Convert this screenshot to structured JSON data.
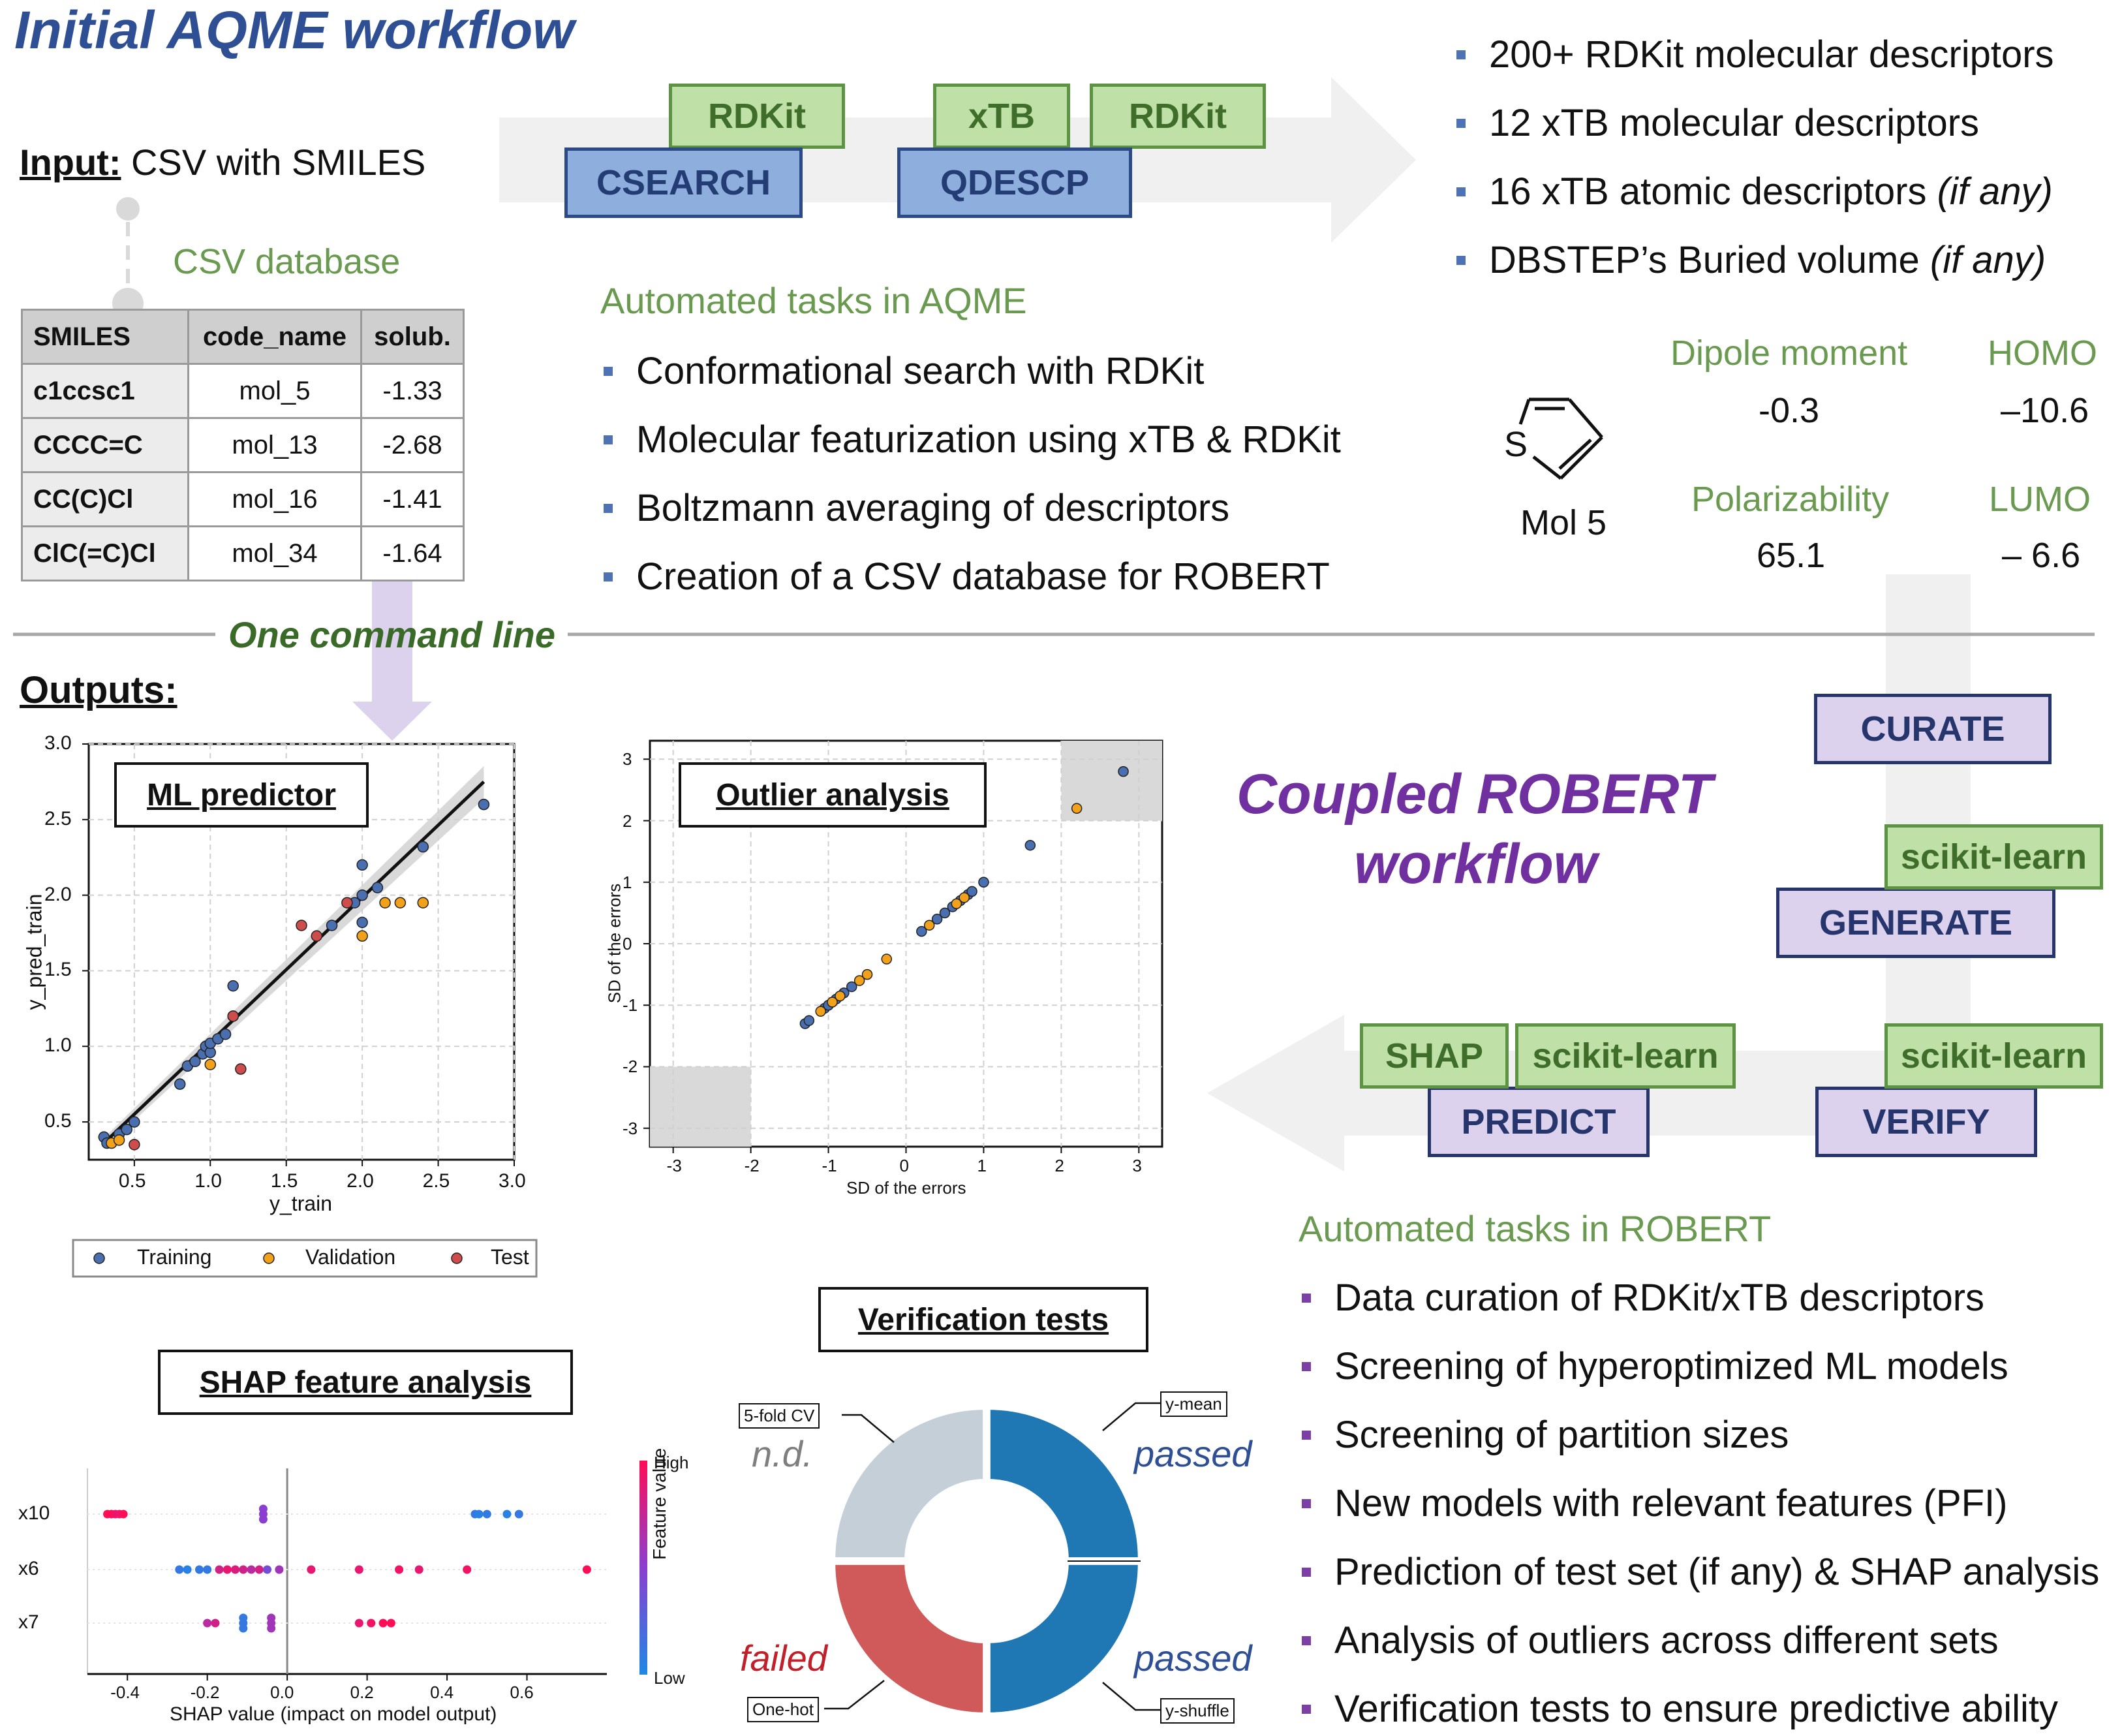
{
  "aqme": {
    "title": "Initial AQME workflow",
    "input_label": "Input:",
    "input_text": " CSV with SMILES",
    "csv_db_label": "CSV database",
    "table": {
      "headers": [
        "SMILES",
        "code_name",
        "solub."
      ],
      "rows": [
        [
          "c1ccsc1",
          "mol_5",
          "-1.33"
        ],
        [
          "CCCC=C",
          "mol_13",
          "-2.68"
        ],
        [
          "CC(C)Cl",
          "mol_16",
          "-1.41"
        ],
        [
          "ClC(=C)Cl",
          "mol_34",
          "-1.64"
        ]
      ]
    },
    "tools": {
      "rdkit1": "RDKit",
      "csearch": "CSEARCH",
      "xtb": "xTB",
      "rdkit2": "RDKit",
      "qdescp": "QDESCP"
    },
    "tasks_title": "Automated tasks in AQME",
    "tasks": [
      "Conformational search with RDKit",
      "Molecular featurization using xTB & RDKit",
      "Boltzmann averaging of descriptors",
      "Creation of a CSV database for ROBERT"
    ],
    "descriptors": [
      {
        "text": "200+ RDKit molecular descriptors",
        "note": ""
      },
      {
        "text": "12 xTB molecular descriptors",
        "note": ""
      },
      {
        "text": "16 xTB atomic descriptors ",
        "note": "(if any)"
      },
      {
        "text": "DBSTEP’s  Buried volume ",
        "note": "(if any)"
      }
    ],
    "molecule": {
      "name": "Mol 5",
      "atom": "S",
      "props": [
        {
          "label": "Dipole moment",
          "value": "-0.3"
        },
        {
          "label": "HOMO",
          "value": "–10.6"
        },
        {
          "label": "Polarizability",
          "value": "65.1"
        },
        {
          "label": "LUMO",
          "value": "– 6.6"
        }
      ]
    }
  },
  "divider_label": "One command line",
  "outputs_label": "Outputs:",
  "robert": {
    "title_line1": "Coupled ROBERT",
    "title_line2": "workflow",
    "tools": {
      "curate": "CURATE",
      "sklearn_gen": "scikit-learn",
      "generate": "GENERATE",
      "shap": "SHAP",
      "sklearn_pred": "scikit-learn",
      "predict": "PREDICT",
      "sklearn_ver": "scikit-learn",
      "verify": "VERIFY"
    },
    "tasks_title": "Automated tasks in ROBERT",
    "tasks": [
      "Data curation of RDKit/xTB descriptors",
      "Screening of hyperoptimized ML models",
      "Screening of partition sizes",
      "New models with relevant features (PFI)",
      "Prediction of test set (if any) & SHAP analysis",
      "Analysis of outliers across different sets",
      "Verification tests to ensure predictive ability"
    ]
  },
  "colors": {
    "aqme_title": "#2e4f94",
    "robert_title": "#7030a0",
    "training": "#4a6fb0",
    "validation": "#f2a21a",
    "test": "#cf4c4c",
    "passed": "#1f77b4",
    "failed": "#d05a5a",
    "nd": "#c4cfd8"
  },
  "chart_data": [
    {
      "type": "scatter",
      "title": "ML predictor",
      "xlabel": "y_train",
      "ylabel": "y_pred_train",
      "xlim": [
        0.2,
        3.0
      ],
      "ylim": [
        0.25,
        3.0
      ],
      "xticks": [
        "0.5",
        "1.0",
        "1.5",
        "2.0",
        "2.5",
        "3.0"
      ],
      "yticks": [
        "0.5",
        "1.0",
        "1.5",
        "2.0",
        "2.5",
        "3.0"
      ],
      "legend": [
        "Training",
        "Validation",
        "Test"
      ],
      "legend_position": "bottom",
      "grid": true,
      "series": [
        {
          "name": "Training",
          "color": "#4a6fb0",
          "points": [
            [
              0.3,
              0.4
            ],
            [
              0.32,
              0.36
            ],
            [
              0.4,
              0.42
            ],
            [
              0.45,
              0.45
            ],
            [
              0.5,
              0.5
            ],
            [
              0.8,
              0.75
            ],
            [
              0.85,
              0.87
            ],
            [
              0.9,
              0.9
            ],
            [
              0.95,
              0.95
            ],
            [
              0.97,
              1.0
            ],
            [
              1.0,
              0.96
            ],
            [
              1.0,
              1.02
            ],
            [
              1.05,
              1.05
            ],
            [
              1.1,
              1.08
            ],
            [
              1.15,
              1.2
            ],
            [
              1.15,
              1.4
            ],
            [
              1.8,
              1.8
            ],
            [
              1.95,
              1.95
            ],
            [
              2.0,
              2.2
            ],
            [
              2.0,
              1.82
            ],
            [
              2.0,
              2.0
            ],
            [
              2.1,
              2.05
            ],
            [
              2.4,
              2.32
            ],
            [
              2.8,
              2.6
            ]
          ]
        },
        {
          "name": "Validation",
          "color": "#f2a21a",
          "points": [
            [
              0.35,
              0.36
            ],
            [
              0.4,
              0.38
            ],
            [
              1.0,
              0.88
            ],
            [
              2.0,
              1.73
            ],
            [
              2.15,
              1.95
            ],
            [
              2.25,
              1.95
            ],
            [
              2.4,
              1.95
            ]
          ]
        },
        {
          "name": "Test",
          "color": "#cf4c4c",
          "points": [
            [
              0.5,
              0.35
            ],
            [
              1.15,
              1.2
            ],
            [
              1.2,
              0.85
            ],
            [
              1.6,
              1.8
            ],
            [
              1.7,
              1.73
            ],
            [
              1.9,
              1.95
            ]
          ]
        }
      ],
      "fit_line": [
        [
          0.3,
          0.36
        ],
        [
          2.8,
          2.75
        ]
      ]
    },
    {
      "type": "scatter",
      "title": "Outlier analysis",
      "xlabel": "SD of the errors",
      "ylabel": "SD of the errors",
      "xlim": [
        -3.3,
        3.3
      ],
      "ylim": [
        -3.3,
        3.3
      ],
      "xticks": [
        "-3",
        "-2",
        "-1",
        "0",
        "1",
        "2",
        "3"
      ],
      "yticks": [
        "-3",
        "-2",
        "-1",
        "0",
        "1",
        "2",
        "3"
      ],
      "grid": true,
      "series": [
        {
          "name": "Training",
          "color": "#4a6fb0",
          "points": [
            [
              -1.3,
              -1.3
            ],
            [
              -1.25,
              -1.25
            ],
            [
              -1.05,
              -1.05
            ],
            [
              -1.0,
              -1.0
            ],
            [
              -0.9,
              -0.9
            ],
            [
              -0.8,
              -0.8
            ],
            [
              -0.7,
              -0.7
            ],
            [
              0.2,
              0.2
            ],
            [
              0.4,
              0.4
            ],
            [
              0.5,
              0.5
            ],
            [
              0.6,
              0.6
            ],
            [
              0.7,
              0.7
            ],
            [
              0.8,
              0.8
            ],
            [
              0.85,
              0.85
            ],
            [
              1.0,
              1.0
            ],
            [
              1.6,
              1.6
            ],
            [
              2.8,
              2.8
            ]
          ]
        },
        {
          "name": "Validation",
          "color": "#f2a21a",
          "points": [
            [
              -1.1,
              -1.1
            ],
            [
              -0.95,
              -0.95
            ],
            [
              -0.85,
              -0.85
            ],
            [
              -0.6,
              -0.6
            ],
            [
              -0.5,
              -0.5
            ],
            [
              -0.25,
              -0.25
            ],
            [
              0.3,
              0.3
            ],
            [
              0.65,
              0.65
            ],
            [
              0.75,
              0.75
            ],
            [
              2.2,
              2.2
            ]
          ]
        }
      ]
    },
    {
      "type": "scatter",
      "title": "SHAP feature analysis",
      "xlabel": "SHAP value (impact on model output)",
      "colorbar_label": "Feature value",
      "colorbar_high": "High",
      "colorbar_low": "Low",
      "xlim": [
        -0.5,
        0.8
      ],
      "xticks": [
        "-0.4",
        "-0.2",
        "0.0",
        "0.2",
        "0.4",
        "0.6"
      ],
      "features": [
        "x10",
        "x6",
        "x7"
      ],
      "series": [
        {
          "name": "x10",
          "points": [
            [
              -0.45,
              1.0
            ],
            [
              -0.44,
              1.0
            ],
            [
              -0.43,
              0.95
            ],
            [
              -0.42,
              0.9
            ],
            [
              -0.41,
              1.0
            ],
            [
              -0.06,
              0.5
            ],
            [
              -0.06,
              0.5
            ],
            [
              -0.06,
              0.5
            ],
            [
              0.47,
              0.1
            ],
            [
              0.48,
              0.05
            ],
            [
              0.5,
              0.1
            ],
            [
              0.55,
              0.05
            ],
            [
              0.58,
              0.1
            ]
          ]
        },
        {
          "name": "x6",
          "points": [
            [
              -0.27,
              0.1
            ],
            [
              -0.25,
              0.05
            ],
            [
              -0.22,
              0.1
            ],
            [
              -0.2,
              0.1
            ],
            [
              -0.17,
              0.8
            ],
            [
              -0.15,
              0.9
            ],
            [
              -0.13,
              0.85
            ],
            [
              -0.11,
              0.8
            ],
            [
              -0.09,
              0.7
            ],
            [
              -0.07,
              0.8
            ],
            [
              -0.05,
              0.4
            ],
            [
              -0.02,
              0.6
            ],
            [
              0.06,
              0.9
            ],
            [
              0.18,
              0.9
            ],
            [
              0.28,
              0.95
            ],
            [
              0.33,
              0.9
            ],
            [
              0.45,
              0.95
            ],
            [
              0.75,
              1.0
            ]
          ]
        },
        {
          "name": "x7",
          "points": [
            [
              -0.2,
              0.7
            ],
            [
              -0.18,
              0.8
            ],
            [
              -0.11,
              0.1
            ],
            [
              -0.11,
              0.1
            ],
            [
              -0.11,
              0.1
            ],
            [
              -0.04,
              0.6
            ],
            [
              -0.04,
              0.6
            ],
            [
              -0.04,
              0.6
            ],
            [
              0.18,
              0.9
            ],
            [
              0.21,
              0.95
            ],
            [
              0.24,
              1.0
            ],
            [
              0.26,
              1.0
            ]
          ]
        }
      ]
    },
    {
      "type": "pie",
      "title": "Verification tests",
      "slices": [
        {
          "label": "y-mean",
          "status": "passed",
          "value": 25
        },
        {
          "label": "y-shuffle",
          "status": "passed",
          "value": 25
        },
        {
          "label": "One-hot",
          "status": "failed",
          "value": 25
        },
        {
          "label": "5-fold CV",
          "status": "n.d.",
          "value": 25
        }
      ]
    }
  ]
}
